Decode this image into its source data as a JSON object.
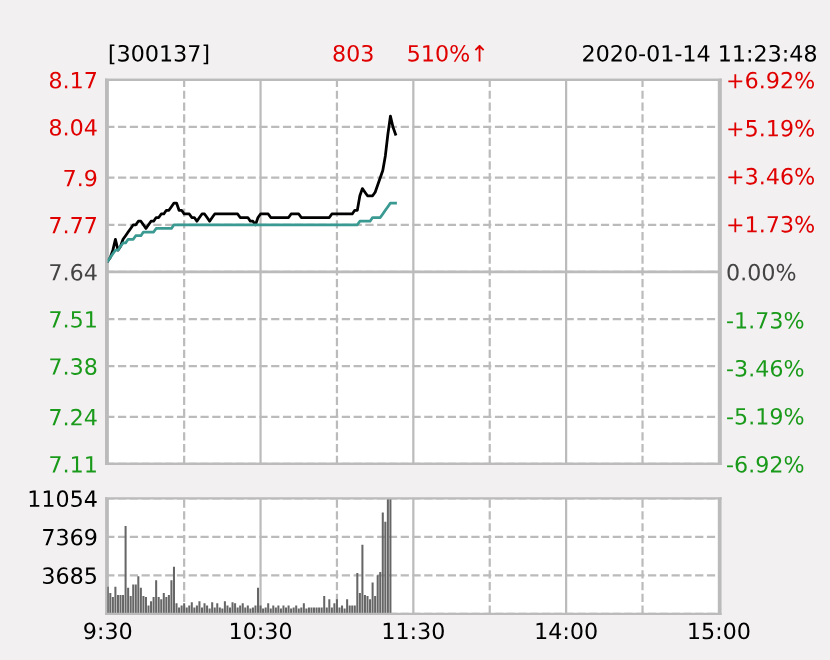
{
  "chart_data": [
    {
      "type": "line",
      "title": "[300137]",
      "annotations": [
        "803",
        "510%↑",
        "2020-01-14 11:23:48"
      ],
      "categories": [
        null,
        null,
        null,
        null,
        null,
        null,
        null,
        null,
        null,
        null,
        null,
        null,
        null,
        null,
        null,
        null,
        null,
        null,
        null,
        null,
        null,
        null,
        null,
        null,
        null,
        null,
        null,
        null,
        null,
        null,
        null,
        null,
        null,
        null,
        null,
        null,
        null,
        null,
        null,
        null,
        null,
        null,
        null,
        null,
        null,
        null,
        null,
        null,
        null,
        null,
        null,
        null,
        null,
        null,
        null,
        null,
        null,
        null,
        null,
        null,
        null,
        null,
        null,
        null,
        null,
        null,
        null,
        null,
        null,
        null,
        null,
        null,
        null,
        null,
        null,
        null,
        null,
        null,
        null,
        null,
        null,
        null,
        null,
        null,
        null,
        null,
        null,
        null,
        null,
        null,
        null,
        null,
        null,
        null,
        null,
        null,
        null,
        null,
        null,
        null,
        null,
        null,
        null,
        null,
        null,
        null,
        null,
        null,
        null,
        null,
        null,
        null,
        null,
        null,
        null,
        null,
        null,
        null,
        null,
        null,
        null,
        null,
        null,
        null,
        null,
        null,
        null,
        null,
        null,
        null,
        null,
        null,
        null,
        null,
        null,
        null,
        null,
        null,
        null,
        null,
        null,
        null,
        null,
        null,
        null,
        null,
        null,
        null,
        null,
        null,
        null,
        null,
        null,
        null,
        null,
        null,
        null,
        null,
        null,
        null,
        null,
        null,
        null,
        null,
        null,
        null,
        null,
        null,
        null,
        null,
        null,
        null,
        null,
        null,
        null,
        null,
        null,
        null,
        null,
        null,
        null,
        null,
        null,
        null,
        null,
        null,
        null,
        null,
        null,
        null,
        null,
        null,
        null,
        null,
        null,
        null,
        null,
        null,
        null,
        null,
        null,
        null,
        null,
        null,
        null,
        null,
        null,
        null,
        null,
        null,
        null,
        null,
        null,
        null,
        null,
        null,
        null,
        null,
        null,
        null,
        null,
        null,
        null,
        null,
        null,
        null,
        null,
        null,
        null,
        null,
        null,
        null,
        null,
        null,
        null,
        null,
        null,
        null,
        null,
        null,
        null
      ],
      "series": [
        {
          "color": "#000000",
          "values": [
            7.67,
            7.68,
            7.7,
            7.73,
            7.7,
            7.71,
            7.73,
            7.74,
            7.75,
            7.76,
            7.77,
            7.77,
            7.78,
            7.78,
            7.77,
            7.76,
            7.77,
            7.78,
            7.78,
            7.79,
            7.79,
            7.8,
            7.8,
            7.81,
            7.81,
            7.82,
            7.83,
            7.83,
            7.81,
            7.81,
            7.8,
            7.8,
            7.8,
            7.79,
            7.79,
            7.78,
            7.79,
            7.8,
            7.8,
            7.79,
            7.78,
            7.79,
            7.8,
            7.8,
            7.8,
            7.8,
            7.8,
            7.8,
            7.8,
            7.8,
            7.8,
            7.8,
            7.79,
            7.79,
            7.79,
            7.79,
            7.78,
            7.78,
            7.77,
            7.79,
            7.8,
            7.8,
            7.8,
            7.8,
            7.79,
            7.79,
            7.79,
            7.79,
            7.79,
            7.79,
            7.79,
            7.79,
            7.8,
            7.8,
            7.8,
            7.8,
            7.79,
            7.79,
            7.79,
            7.79,
            7.79,
            7.79,
            7.79,
            7.79,
            7.79,
            7.79,
            7.79,
            7.79,
            7.8,
            7.8,
            7.8,
            7.8,
            7.8,
            7.8,
            7.8,
            7.8,
            7.8,
            7.81,
            7.81,
            7.85,
            7.87,
            7.86,
            7.85,
            7.85,
            7.85,
            7.86,
            7.88,
            7.9,
            7.92,
            7.96,
            8.02,
            8.07,
            8.04,
            8.02,
            null,
            null,
            null,
            null,
            null,
            null,
            null,
            null,
            null,
            null,
            null,
            null,
            null,
            null,
            null,
            null,
            null,
            null,
            null,
            null,
            null,
            null,
            null,
            null,
            null,
            null,
            null,
            null,
            null,
            null,
            null,
            null,
            null,
            null,
            null,
            null,
            null,
            null,
            null,
            null,
            null,
            null,
            null,
            null,
            null,
            null,
            null,
            null,
            null,
            null,
            null,
            null,
            null,
            null,
            null,
            null,
            null,
            null,
            null,
            null,
            null,
            null,
            null,
            null,
            null,
            null,
            null,
            null,
            null,
            null,
            null,
            null,
            null,
            null,
            null,
            null,
            null,
            null,
            null,
            null,
            null,
            null,
            null,
            null,
            null,
            null,
            null,
            null,
            null,
            null,
            null,
            null,
            null,
            null,
            null,
            null,
            null,
            null,
            null,
            null,
            null,
            null,
            null,
            null,
            null,
            null,
            null,
            null,
            null,
            null,
            null,
            null,
            null,
            null,
            null,
            null,
            null,
            null,
            null,
            null,
            null,
            null,
            null,
            null,
            null,
            null,
            null
          ]
        },
        {
          "color": "#3a9a92",
          "values": [
            7.67,
            7.68,
            7.69,
            7.7,
            7.7,
            7.71,
            7.72,
            7.72,
            7.73,
            7.73,
            7.73,
            7.74,
            7.74,
            7.74,
            7.75,
            7.75,
            7.75,
            7.75,
            7.75,
            7.76,
            7.76,
            7.76,
            7.76,
            7.76,
            7.76,
            7.76,
            7.77,
            7.77,
            7.77,
            7.77,
            7.77,
            7.77,
            7.77,
            7.77,
            7.77,
            7.77,
            7.77,
            7.77,
            7.77,
            7.77,
            7.77,
            7.77,
            7.77,
            7.77,
            7.77,
            7.77,
            7.77,
            7.77,
            7.77,
            7.77,
            7.77,
            7.77,
            7.77,
            7.77,
            7.77,
            7.77,
            7.77,
            7.77,
            7.77,
            7.77,
            7.77,
            7.77,
            7.77,
            7.77,
            7.77,
            7.77,
            7.77,
            7.77,
            7.77,
            7.77,
            7.77,
            7.77,
            7.77,
            7.77,
            7.77,
            7.77,
            7.77,
            7.77,
            7.77,
            7.77,
            7.77,
            7.77,
            7.77,
            7.77,
            7.77,
            7.77,
            7.77,
            7.77,
            7.77,
            7.77,
            7.77,
            7.77,
            7.77,
            7.77,
            7.77,
            7.77,
            7.77,
            7.77,
            7.77,
            7.78,
            7.78,
            7.78,
            7.78,
            7.78,
            7.79,
            7.79,
            7.79,
            7.79,
            7.8,
            7.81,
            7.82,
            7.83,
            7.83,
            7.83,
            null,
            null,
            null,
            null,
            null,
            null,
            null,
            null,
            null,
            null,
            null,
            null,
            null,
            null,
            null,
            null,
            null,
            null,
            null,
            null,
            null,
            null,
            null,
            null,
            null,
            null,
            null,
            null,
            null,
            null,
            null,
            null,
            null,
            null,
            null,
            null,
            null,
            null,
            null,
            null,
            null,
            null,
            null,
            null,
            null,
            null,
            null,
            null,
            null,
            null,
            null,
            null,
            null,
            null,
            null,
            null,
            null,
            null,
            null,
            null,
            null,
            null,
            null,
            null,
            null,
            null,
            null,
            null,
            null,
            null,
            null,
            null,
            null,
            null,
            null,
            null,
            null,
            null,
            null,
            null,
            null,
            null,
            null,
            null,
            null,
            null,
            null,
            null,
            null,
            null,
            null,
            null,
            null,
            null,
            null,
            null,
            null,
            null,
            null,
            null,
            null,
            null,
            null,
            null,
            null,
            null,
            null,
            null,
            null,
            null,
            null,
            null,
            null,
            null,
            null,
            null,
            null,
            null,
            null,
            null,
            null,
            null,
            null,
            null,
            null,
            null,
            null
          ]
        }
      ],
      "ylim": [
        7.11,
        8.17
      ],
      "yticks": [
        7.11,
        7.24,
        7.38,
        7.51,
        7.64,
        7.77,
        7.9,
        8.04,
        8.17
      ],
      "y2lim": [
        -6.92,
        6.92
      ],
      "y2ticks": [
        {
          "value": -6.92,
          "label": "-6.92%"
        },
        {
          "value": -5.19,
          "label": "-5.19%"
        },
        {
          "value": -3.46,
          "label": "-3.46%"
        },
        {
          "value": -1.73,
          "label": "-1.73%"
        },
        {
          "value": 0,
          "label": "0.00%"
        },
        {
          "value": 1.73,
          "label": "+1.73%"
        },
        {
          "value": 3.46,
          "label": "+3.46%"
        },
        {
          "value": 5.19,
          "label": "+5.19%"
        },
        {
          "value": 6.92,
          "label": "+6.92%"
        }
      ],
      "ref_lines": [
        {
          "axis": "y",
          "value": 7.64,
          "color": "#bbbbbb",
          "line_style": "solid"
        }
      ],
      "grid": true,
      "tick_labels": "y"
    },
    {
      "type": "bar",
      "categories": [
        "9:30",
        null,
        null,
        null,
        null,
        null,
        null,
        null,
        null,
        null,
        null,
        null,
        null,
        null,
        null,
        null,
        null,
        null,
        null,
        null,
        null,
        null,
        null,
        null,
        null,
        null,
        null,
        null,
        null,
        null,
        null,
        null,
        null,
        null,
        null,
        null,
        null,
        null,
        null,
        null,
        null,
        null,
        null,
        null,
        null,
        null,
        null,
        null,
        null,
        null,
        null,
        null,
        null,
        null,
        null,
        null,
        null,
        null,
        null,
        null,
        "10:30",
        null,
        null,
        null,
        null,
        null,
        null,
        null,
        null,
        null,
        null,
        null,
        null,
        null,
        null,
        null,
        null,
        null,
        null,
        null,
        null,
        null,
        null,
        null,
        null,
        null,
        null,
        null,
        null,
        null,
        null,
        null,
        null,
        null,
        null,
        null,
        null,
        null,
        null,
        null,
        null,
        null,
        null,
        null,
        null,
        null,
        null,
        null,
        null,
        null,
        null,
        null,
        null,
        null,
        null,
        null,
        null,
        null,
        null,
        null,
        "11:30",
        null,
        null,
        null,
        null,
        null,
        null,
        null,
        null,
        null,
        null,
        null,
        null,
        null,
        null,
        null,
        null,
        null,
        null,
        null,
        null,
        null,
        null,
        null,
        null,
        null,
        null,
        null,
        null,
        null,
        null,
        null,
        null,
        null,
        null,
        null,
        null,
        null,
        null,
        null,
        null,
        null,
        null,
        null,
        null,
        null,
        null,
        null,
        null,
        null,
        null,
        null,
        null,
        null,
        null,
        null,
        null,
        null,
        null,
        null,
        "14:00",
        null,
        null,
        null,
        null,
        null,
        null,
        null,
        null,
        null,
        null,
        null,
        null,
        null,
        null,
        null,
        null,
        null,
        null,
        null,
        null,
        null,
        null,
        null,
        null,
        null,
        null,
        null,
        null,
        null,
        null,
        null,
        null,
        null,
        null,
        null,
        null,
        null,
        null,
        null,
        null,
        null,
        null,
        null,
        null,
        null,
        null,
        null,
        null,
        null,
        null,
        null,
        null,
        null,
        null,
        null,
        null,
        null,
        null,
        null,
        "15:00"
      ],
      "values": [
        2600,
        2000,
        1600,
        2600,
        1800,
        1800,
        1800,
        8400,
        2500,
        1700,
        2800,
        2800,
        3600,
        2500,
        1700,
        1600,
        800,
        1200,
        1600,
        3200,
        1600,
        1400,
        2000,
        1600,
        1800,
        3200,
        4500,
        1000,
        600,
        800,
        1000,
        600,
        800,
        1100,
        600,
        800,
        1200,
        600,
        1000,
        800,
        500,
        1100,
        600,
        1000,
        600,
        500,
        1200,
        800,
        600,
        1100,
        1000,
        600,
        800,
        1000,
        600,
        800,
        500,
        600,
        800,
        2500,
        800,
        500,
        600,
        1000,
        500,
        800,
        600,
        800,
        500,
        800,
        600,
        800,
        500,
        600,
        800,
        500,
        600,
        1000,
        500,
        600,
        600,
        600,
        600,
        600,
        600,
        1700,
        600,
        1400,
        600,
        1000,
        1400,
        600,
        800,
        500,
        1400,
        800,
        800,
        800,
        3900,
        2000,
        6600,
        1800,
        1700,
        1400,
        3000,
        1700,
        3700,
        4000,
        9700,
        8800,
        11054,
        11054,
        null,
        null,
        null,
        null,
        null,
        null,
        null,
        null,
        null,
        null,
        null,
        null,
        null,
        null,
        null,
        null,
        null,
        null,
        null,
        null,
        null,
        null,
        null,
        null,
        null,
        null,
        null,
        null,
        null,
        null,
        null,
        null,
        null,
        null,
        null,
        null,
        null,
        null,
        null,
        null,
        null,
        null,
        null,
        null,
        null,
        null,
        null,
        null,
        null,
        null,
        null,
        null,
        null,
        null,
        null,
        null,
        null,
        null,
        null,
        null,
        null,
        null,
        null,
        null,
        null,
        null,
        null,
        null,
        null,
        null,
        null,
        null,
        null,
        null,
        null,
        null,
        null,
        null,
        null,
        null,
        null,
        null,
        null,
        null,
        null,
        null,
        null,
        null,
        null,
        null,
        null,
        null,
        null,
        null,
        null,
        null,
        null,
        null,
        null,
        null,
        null,
        null,
        null,
        null,
        null,
        null,
        null,
        null,
        null,
        null,
        null,
        null,
        null,
        null,
        null,
        null,
        null,
        null,
        null,
        null,
        null,
        null,
        null,
        null,
        null,
        null,
        null,
        null,
        null
      ],
      "color": "#666666",
      "ylim": [
        0,
        11054
      ],
      "yticks": [
        {
          "value": 0,
          "label": null
        },
        3685,
        7369,
        11054
      ],
      "grid": true
    }
  ]
}
